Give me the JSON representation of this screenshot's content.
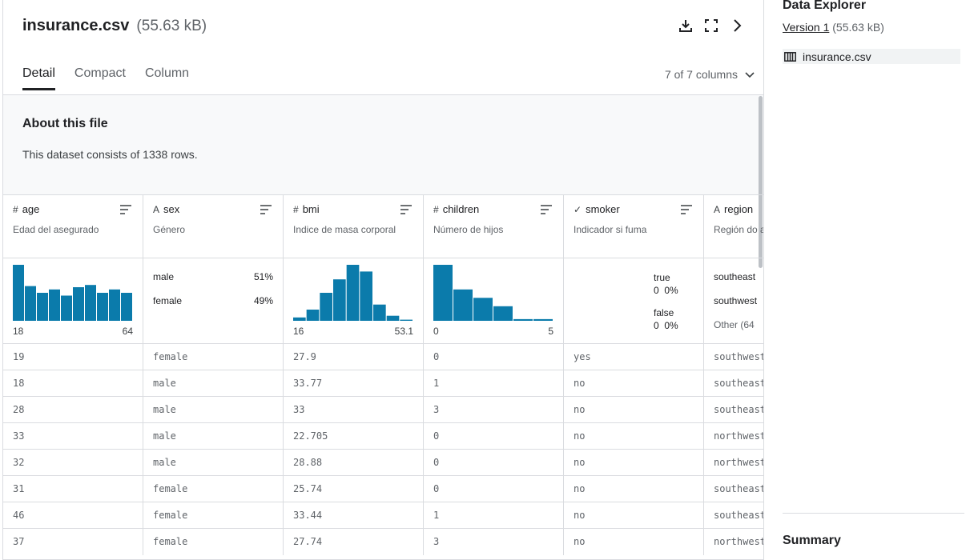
{
  "file": {
    "name": "insurance.csv",
    "size": "(55.63 kB)"
  },
  "tabs": [
    "Detail",
    "Compact",
    "Column"
  ],
  "column_count": "7 of 7 columns",
  "about": {
    "title": "About this file",
    "text": "This dataset consists of 1338 rows."
  },
  "columns": [
    {
      "type_icon": "#",
      "name": "age",
      "desc": "Edad del asegurado",
      "min": "18",
      "max": "64"
    },
    {
      "type_icon": "A",
      "name": "sex",
      "desc": "Género",
      "cats": [
        {
          "label": "male",
          "pct": "51%"
        },
        {
          "label": "female",
          "pct": "49%"
        }
      ]
    },
    {
      "type_icon": "#",
      "name": "bmi",
      "desc": "Indice de masa corporal",
      "min": "16",
      "max": "53.1"
    },
    {
      "type_icon": "#",
      "name": "children",
      "desc": "Número de hijos",
      "min": "0",
      "max": "5"
    },
    {
      "type_icon": "✓",
      "name": "smoker",
      "desc": "Indicador si fuma",
      "bools": [
        {
          "label": "true",
          "count": "0",
          "pct": "0%"
        },
        {
          "label": "false",
          "count": "0",
          "pct": "0%"
        }
      ]
    },
    {
      "type_icon": "A",
      "name": "region",
      "desc": "Región do asegurado",
      "cats": [
        {
          "label": "southeast"
        },
        {
          "label": "southwest"
        },
        {
          "label": "Other (64"
        }
      ]
    }
  ],
  "histograms": {
    "age": [
      1.0,
      0.62,
      0.5,
      0.56,
      0.45,
      0.6,
      0.64,
      0.5,
      0.56,
      0.5
    ],
    "bmi": [
      0.06,
      0.2,
      0.5,
      0.74,
      1.0,
      0.88,
      0.29,
      0.09,
      0.02
    ],
    "children": [
      1.0,
      0.56,
      0.41,
      0.26,
      0.03,
      0.03
    ]
  },
  "rows": [
    [
      "19",
      "female",
      "27.9",
      "0",
      "yes",
      "southwest"
    ],
    [
      "18",
      "male",
      "33.77",
      "1",
      "no",
      "southeast"
    ],
    [
      "28",
      "male",
      "33",
      "3",
      "no",
      "southeast"
    ],
    [
      "33",
      "male",
      "22.705",
      "0",
      "no",
      "northwest"
    ],
    [
      "32",
      "male",
      "28.88",
      "0",
      "no",
      "northwest"
    ],
    [
      "31",
      "female",
      "25.74",
      "0",
      "no",
      "southeast"
    ],
    [
      "46",
      "female",
      "33.44",
      "1",
      "no",
      "southeast"
    ],
    [
      "37",
      "female",
      "27.74",
      "3",
      "no",
      "northwest"
    ]
  ],
  "sidebar": {
    "title": "Data Explorer",
    "version": "Version 1",
    "version_size": "(55.63 kB)",
    "file": "insurance.csv",
    "summary": "Summary"
  },
  "colors": {
    "bar": "#0b7bab",
    "border": "#dadce0",
    "muted": "#5f6368"
  },
  "icons": {
    "download": "download-icon",
    "fullscreen": "fullscreen-icon",
    "next": "chevron-right-icon",
    "sort": "sort-icon",
    "table": "table-icon"
  }
}
